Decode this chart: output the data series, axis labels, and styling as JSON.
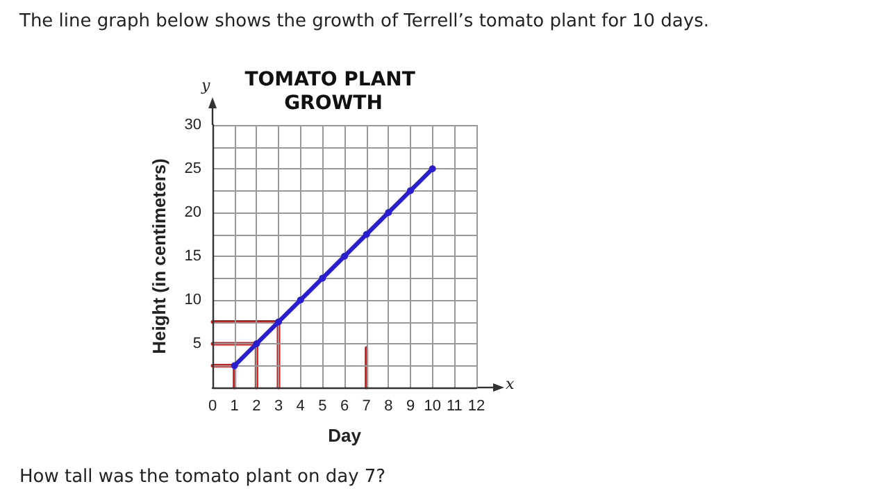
{
  "chart_data": {
    "type": "line",
    "title": "TOMATO PLANT GROWTH",
    "xlabel": "Day",
    "ylabel": "Height (in centimeters)",
    "annotations": [
      "The line graph below shows the growth of Terrell’s tomato plant for 10 days.",
      "How tall was the tomato plant on day 7?",
      "y",
      "x"
    ],
    "x": [
      1,
      2,
      3,
      4,
      5,
      6,
      7,
      8,
      9,
      10
    ],
    "series": [
      {
        "color": "#2a1fd0",
        "values": [
          2.5,
          5,
          7.5,
          10,
          12.5,
          15,
          17.5,
          20,
          22.5,
          25
        ]
      }
    ],
    "xlim": [
      0,
      12
    ],
    "xticks": [
      0,
      1,
      2,
      3,
      4,
      5,
      6,
      7,
      8,
      9,
      10,
      11,
      12
    ],
    "ylim": [
      0,
      30
    ],
    "yticks": [
      {
        "value": 0,
        "label": null
      },
      {
        "value": 2.5,
        "label": null
      },
      5,
      {
        "value": 7.5,
        "label": null
      },
      10,
      {
        "value": 12.5,
        "label": null
      },
      15,
      {
        "value": 17.5,
        "label": null
      },
      20,
      {
        "value": 22.5,
        "label": null
      },
      25,
      {
        "value": 27.5,
        "label": null
      },
      30
    ],
    "grid": true,
    "marker": "circle",
    "line_style": "solid"
  }
}
